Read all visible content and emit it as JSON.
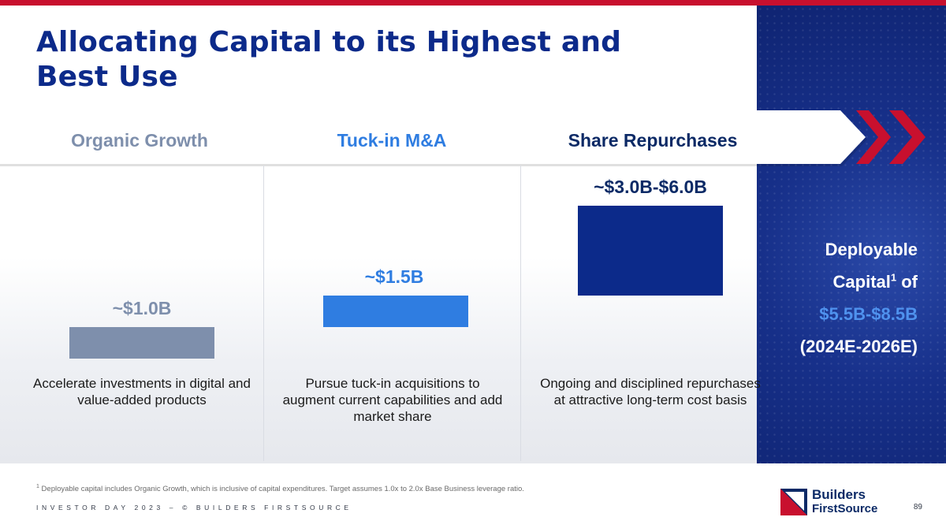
{
  "slide": {
    "title": "Allocating Capital to its Highest and Best Use",
    "page_number": "89"
  },
  "banner": {
    "categories": [
      "Organic Growth",
      "Tuck-in M&A",
      "Share Repurchases"
    ]
  },
  "columns": [
    {
      "label": "~$1.0B",
      "value_low_billions": 1.0,
      "value_high_billions": 1.0,
      "color": "#7e8fac",
      "description": "Accelerate investments in digital and value-added products"
    },
    {
      "label": "~$1.5B",
      "value_low_billions": 1.5,
      "value_high_billions": 1.5,
      "color": "#2f7de1",
      "description": "Pursue tuck-in acquisitions to augment current capabilities and add market share"
    },
    {
      "label": "~$3.0B-$6.0B",
      "value_low_billions": 3.0,
      "value_high_billions": 6.0,
      "color": "#0c2a8a",
      "description": "Ongoing and disciplined repurchases at attractive long-term cost basis"
    }
  ],
  "deployable": {
    "line1": "Deployable",
    "line2_word": "Capital",
    "line2_sup": "1",
    "line2_tail": " of",
    "range": "$5.5B-$8.5B",
    "period": "(2024E-2026E)"
  },
  "footnote": {
    "marker": "1",
    "text": " Deployable capital includes Organic Growth, which is inclusive of capital expenditures. Target assumes 1.0x to 2.0x Base Business leverage ratio."
  },
  "footer": {
    "text": "INVESTOR DAY 2023 – © BUILDERS FIRSTSOURCE"
  },
  "logo": {
    "line1": "Builders",
    "line2": "FirstSource"
  },
  "colors": {
    "brand_red": "#c8102e",
    "brand_navy": "#0c2a8a",
    "accent_blue": "#2f7de1",
    "slate": "#7e8fac"
  }
}
